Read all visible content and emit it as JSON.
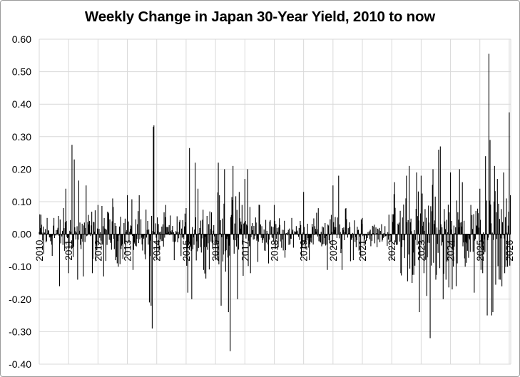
{
  "chart_data": {
    "type": "bar",
    "title": "Weekly Change in Japan 30-Year Yield, 2010 to now",
    "xlabel": "",
    "ylabel": "",
    "ylim": [
      -0.4,
      0.6
    ],
    "y_ticks": [
      "-0.40",
      "-0.30",
      "-0.20",
      "-0.10",
      "0.00",
      "0.10",
      "0.20",
      "0.30",
      "0.40",
      "0.50",
      "0.60"
    ],
    "x_tick_labels": [
      "2010",
      "2011",
      "2012",
      "2013",
      "2014",
      "2015",
      "2016",
      "2017",
      "2018",
      "2019",
      "2020",
      "2021",
      "2022",
      "2023",
      "2024",
      "2025",
      "2026"
    ],
    "x_range": [
      2010,
      2026.05
    ],
    "grid": true,
    "bar_color": "#000000",
    "spikes": [
      {
        "x": 2010.05,
        "value": 0.06
      },
      {
        "x": 2010.15,
        "value": -0.06
      },
      {
        "x": 2010.5,
        "value": 0.05
      },
      {
        "x": 2010.7,
        "value": -0.16
      },
      {
        "x": 2010.9,
        "value": 0.14
      },
      {
        "x": 2011.0,
        "value": -0.12
      },
      {
        "x": 2011.12,
        "value": 0.275
      },
      {
        "x": 2011.2,
        "value": 0.23
      },
      {
        "x": 2011.3,
        "value": -0.14
      },
      {
        "x": 2011.35,
        "value": 0.165
      },
      {
        "x": 2011.5,
        "value": -0.13
      },
      {
        "x": 2011.6,
        "value": 0.15
      },
      {
        "x": 2011.8,
        "value": -0.12
      },
      {
        "x": 2012.0,
        "value": 0.09
      },
      {
        "x": 2012.2,
        "value": -0.13
      },
      {
        "x": 2012.5,
        "value": 0.11
      },
      {
        "x": 2012.7,
        "value": -0.1
      },
      {
        "x": 2013.0,
        "value": 0.12
      },
      {
        "x": 2013.2,
        "value": -0.11
      },
      {
        "x": 2013.4,
        "value": 0.12
      },
      {
        "x": 2013.75,
        "value": -0.21
      },
      {
        "x": 2013.8,
        "value": -0.22
      },
      {
        "x": 2013.85,
        "value": -0.29
      },
      {
        "x": 2013.88,
        "value": 0.33
      },
      {
        "x": 2013.9,
        "value": 0.335
      },
      {
        "x": 2014.0,
        "value": -0.08
      },
      {
        "x": 2014.3,
        "value": 0.09
      },
      {
        "x": 2014.6,
        "value": -0.08
      },
      {
        "x": 2015.05,
        "value": -0.18
      },
      {
        "x": 2015.12,
        "value": 0.265
      },
      {
        "x": 2015.2,
        "value": -0.2
      },
      {
        "x": 2015.3,
        "value": 0.22
      },
      {
        "x": 2015.4,
        "value": 0.14
      },
      {
        "x": 2015.6,
        "value": -0.11
      },
      {
        "x": 2015.8,
        "value": 0.07
      },
      {
        "x": 2016.0,
        "value": -0.08
      },
      {
        "x": 2016.1,
        "value": 0.22
      },
      {
        "x": 2016.2,
        "value": -0.22
      },
      {
        "x": 2016.3,
        "value": 0.2
      },
      {
        "x": 2016.45,
        "value": -0.24
      },
      {
        "x": 2016.5,
        "value": -0.36
      },
      {
        "x": 2016.6,
        "value": 0.21
      },
      {
        "x": 2016.75,
        "value": -0.2
      },
      {
        "x": 2016.8,
        "value": 0.13
      },
      {
        "x": 2016.9,
        "value": 0.09
      },
      {
        "x": 2017.0,
        "value": 0.17
      },
      {
        "x": 2017.1,
        "value": 0.2
      },
      {
        "x": 2017.2,
        "value": -0.12
      },
      {
        "x": 2017.5,
        "value": 0.09
      },
      {
        "x": 2017.8,
        "value": -0.09
      },
      {
        "x": 2018.0,
        "value": 0.09
      },
      {
        "x": 2018.3,
        "value": -0.05
      },
      {
        "x": 2018.6,
        "value": 0.05
      },
      {
        "x": 2019.0,
        "value": 0.13
      },
      {
        "x": 2019.2,
        "value": -0.08
      },
      {
        "x": 2019.5,
        "value": 0.08
      },
      {
        "x": 2019.8,
        "value": -0.11
      },
      {
        "x": 2020.0,
        "value": 0.15
      },
      {
        "x": 2020.2,
        "value": 0.18
      },
      {
        "x": 2020.3,
        "value": -0.11
      },
      {
        "x": 2020.45,
        "value": 0.08
      },
      {
        "x": 2020.7,
        "value": -0.08
      },
      {
        "x": 2021.0,
        "value": 0.05
      },
      {
        "x": 2021.5,
        "value": -0.04
      },
      {
        "x": 2021.9,
        "value": 0.06
      },
      {
        "x": 2022.0,
        "value": -0.08
      },
      {
        "x": 2022.1,
        "value": 0.16
      },
      {
        "x": 2022.3,
        "value": -0.12
      },
      {
        "x": 2022.5,
        "value": 0.18
      },
      {
        "x": 2022.6,
        "value": 0.21
      },
      {
        "x": 2022.7,
        "value": -0.15
      },
      {
        "x": 2022.85,
        "value": 0.19
      },
      {
        "x": 2022.95,
        "value": -0.24
      },
      {
        "x": 2023.0,
        "value": 0.18
      },
      {
        "x": 2023.1,
        "value": -0.12
      },
      {
        "x": 2023.2,
        "value": -0.19
      },
      {
        "x": 2023.3,
        "value": -0.32
      },
      {
        "x": 2023.4,
        "value": 0.2
      },
      {
        "x": 2023.5,
        "value": -0.14
      },
      {
        "x": 2023.6,
        "value": 0.26
      },
      {
        "x": 2023.65,
        "value": 0.27
      },
      {
        "x": 2023.75,
        "value": -0.2
      },
      {
        "x": 2023.85,
        "value": -0.14
      },
      {
        "x": 2024.0,
        "value": 0.19
      },
      {
        "x": 2024.05,
        "value": -0.17
      },
      {
        "x": 2024.2,
        "value": -0.16
      },
      {
        "x": 2024.3,
        "value": 0.2
      },
      {
        "x": 2024.4,
        "value": 0.16
      },
      {
        "x": 2024.5,
        "value": -0.1
      },
      {
        "x": 2024.7,
        "value": 0.09
      },
      {
        "x": 2024.8,
        "value": -0.18
      },
      {
        "x": 2025.0,
        "value": 0.14
      },
      {
        "x": 2025.1,
        "value": -0.12
      },
      {
        "x": 2025.2,
        "value": 0.24
      },
      {
        "x": 2025.25,
        "value": -0.25
      },
      {
        "x": 2025.3,
        "value": 0.555
      },
      {
        "x": 2025.35,
        "value": 0.29
      },
      {
        "x": 2025.4,
        "value": -0.25
      },
      {
        "x": 2025.45,
        "value": -0.24
      },
      {
        "x": 2025.5,
        "value": 0.21
      },
      {
        "x": 2025.6,
        "value": 0.17
      },
      {
        "x": 2025.7,
        "value": -0.14
      },
      {
        "x": 2025.8,
        "value": 0.19
      },
      {
        "x": 2025.85,
        "value": -0.12
      },
      {
        "x": 2025.9,
        "value": 0.11
      },
      {
        "x": 2025.95,
        "value": -0.1
      },
      {
        "x": 2026.0,
        "value": 0.375
      },
      {
        "x": 2026.03,
        "value": 0.12
      }
    ],
    "volatility": [
      {
        "from": 2010,
        "to": 2011,
        "amplitude": 0.045
      },
      {
        "from": 2011,
        "to": 2013,
        "amplitude": 0.05
      },
      {
        "from": 2013,
        "to": 2014,
        "amplitude": 0.05
      },
      {
        "from": 2014,
        "to": 2015,
        "amplitude": 0.035
      },
      {
        "from": 2015,
        "to": 2016,
        "amplitude": 0.06
      },
      {
        "from": 2016,
        "to": 2017.5,
        "amplitude": 0.07
      },
      {
        "from": 2017.5,
        "to": 2019.5,
        "amplitude": 0.035
      },
      {
        "from": 2019.5,
        "to": 2021,
        "amplitude": 0.04
      },
      {
        "from": 2021,
        "to": 2022,
        "amplitude": 0.022
      },
      {
        "from": 2022,
        "to": 2024,
        "amplitude": 0.085
      },
      {
        "from": 2024,
        "to": 2025,
        "amplitude": 0.06
      },
      {
        "from": 2025,
        "to": 2026.05,
        "amplitude": 0.08
      }
    ]
  }
}
